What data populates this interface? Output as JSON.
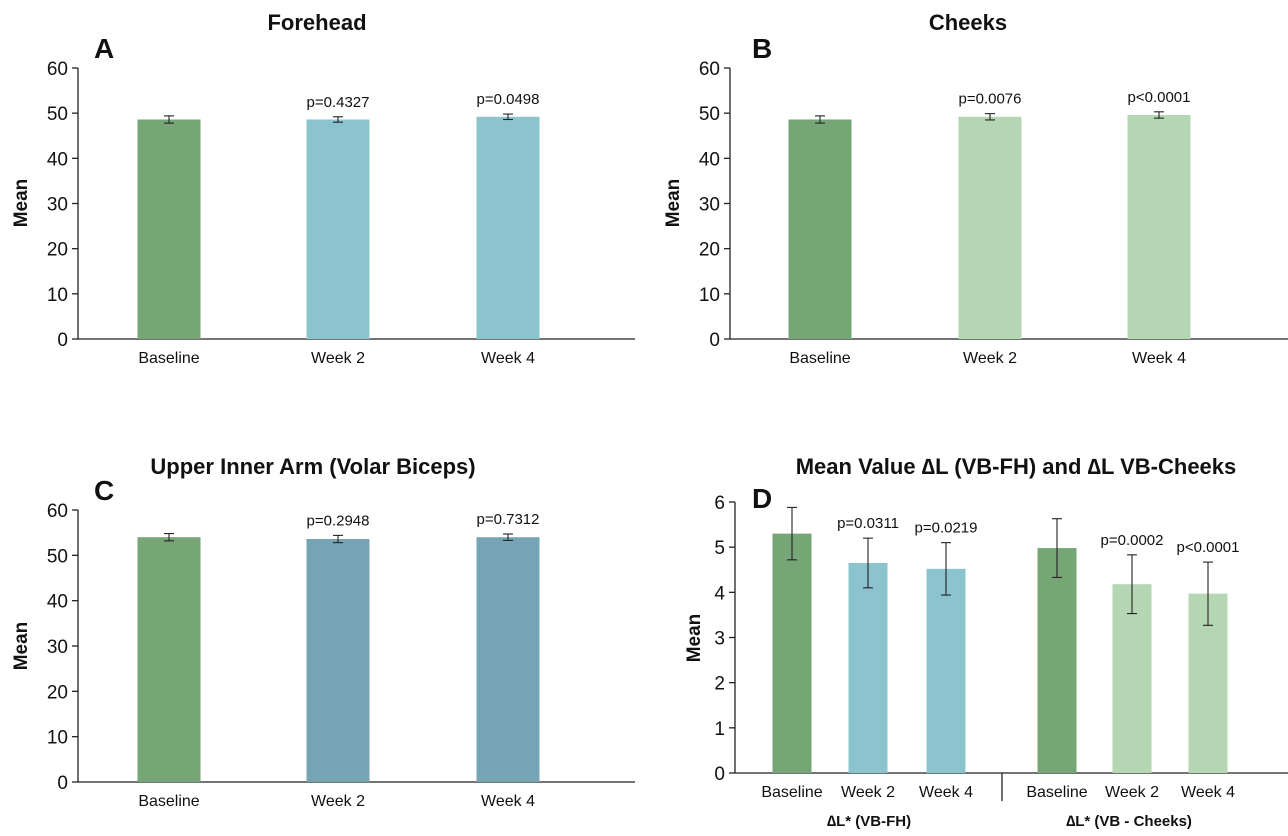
{
  "chart_data": [
    {
      "panel": "A",
      "type": "bar",
      "title": "Forehead",
      "ylabel": "Mean",
      "ylim": [
        0,
        60
      ],
      "yticks": [
        0,
        10,
        20,
        30,
        40,
        50,
        60
      ],
      "categories": [
        "Baseline",
        "Week 2",
        "Week 4"
      ],
      "values": [
        48.6,
        48.6,
        49.2
      ],
      "errors": [
        0.8,
        0.6,
        0.6
      ],
      "pvalues": [
        "",
        "p=0.4327",
        "p=0.0498"
      ],
      "colors": [
        "#76a576",
        "#8bc4cf",
        "#8bc4cf"
      ],
      "grid": false
    },
    {
      "panel": "B",
      "type": "bar",
      "title": "Cheeks",
      "ylabel": "Mean",
      "ylim": [
        0,
        60
      ],
      "yticks": [
        0,
        10,
        20,
        30,
        40,
        50,
        60
      ],
      "categories": [
        "Baseline",
        "Week 2",
        "Week 4"
      ],
      "values": [
        48.6,
        49.2,
        49.6
      ],
      "errors": [
        0.8,
        0.7,
        0.7
      ],
      "pvalues": [
        "",
        "p=0.0076",
        "p<0.0001"
      ],
      "colors": [
        "#76a576",
        "#b5d6b2",
        "#b5d6b2"
      ],
      "grid": false
    },
    {
      "panel": "C",
      "type": "bar",
      "title": "Upper Inner Arm (Volar Biceps)",
      "ylabel": "Mean",
      "ylim": [
        0,
        60
      ],
      "yticks": [
        0,
        10,
        20,
        30,
        40,
        50,
        60
      ],
      "categories": [
        "Baseline",
        "Week 2",
        "Week 4"
      ],
      "values": [
        54.0,
        53.6,
        54.0
      ],
      "errors": [
        0.8,
        0.8,
        0.7
      ],
      "pvalues": [
        "",
        "p=0.2948",
        "p=0.7312"
      ],
      "colors": [
        "#76a576",
        "#76a4b5",
        "#76a4b5"
      ],
      "grid": false
    },
    {
      "panel": "D",
      "type": "bar",
      "title": "Mean Value ∆L (VB-FH) and ∆L VB-Cheeks",
      "ylabel": "Mean",
      "ylim": [
        0,
        6
      ],
      "yticks": [
        0,
        1,
        2,
        3,
        4,
        5,
        6
      ],
      "categories": [
        "Baseline",
        "Week 2",
        "Week 4",
        "Baseline",
        "Week 2",
        "Week 4"
      ],
      "groups": [
        "∆L* (VB-FH)",
        "∆L* (VB - Cheeks)"
      ],
      "values": [
        5.3,
        4.65,
        4.52,
        4.98,
        4.18,
        3.97
      ],
      "errors": [
        0.58,
        0.55,
        0.58,
        0.65,
        0.65,
        0.7
      ],
      "pvalues": [
        "",
        "p=0.0311",
        "p=0.0219",
        "",
        "p=0.0002",
        "p<0.0001"
      ],
      "colors": [
        "#76a576",
        "#8bc4cf",
        "#8bc4cf",
        "#76a576",
        "#b5d6b2",
        "#b5d6b2"
      ],
      "grid": false
    }
  ]
}
